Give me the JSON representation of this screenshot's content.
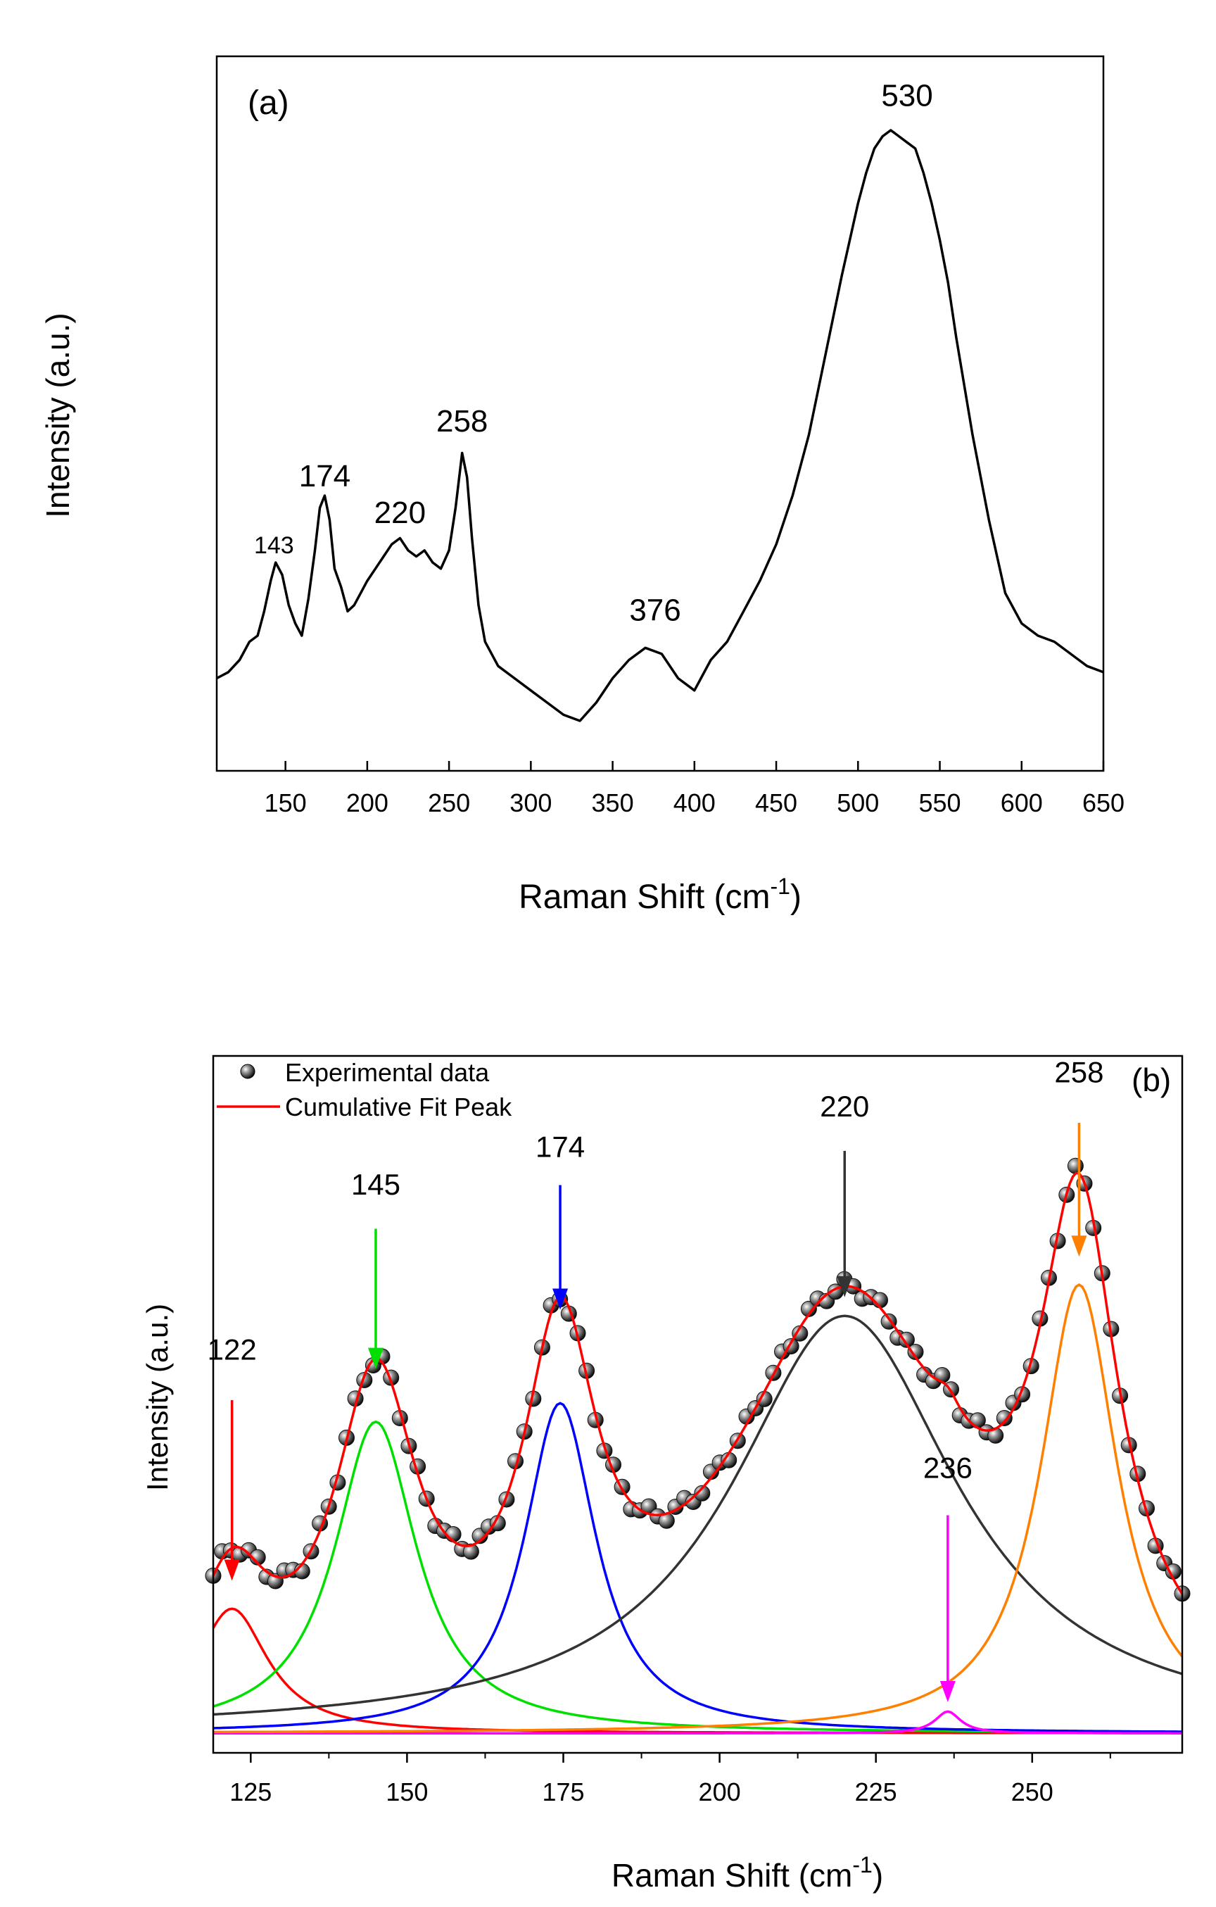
{
  "chart_data": [
    {
      "type": "line",
      "panel_label": "(a)",
      "title": "",
      "xlabel": "Raman Shift (cm",
      "xlabel_sup": "-1",
      "xlabel_end": ")",
      "ylabel": "Intensity (a.u.)",
      "xlim": [
        108,
        650
      ],
      "ylim": [
        0,
        1
      ],
      "xticks": [
        150,
        200,
        250,
        300,
        350,
        400,
        450,
        500,
        550,
        600,
        650
      ],
      "xtick_labels": [
        "150",
        "200",
        "250",
        "300",
        "350",
        "400",
        "450",
        "500",
        "550",
        "600",
        "650"
      ],
      "annotations": [
        {
          "text": "143",
          "x": 143,
          "y": 0.305
        },
        {
          "text": "174",
          "x": 174,
          "y": 0.415
        },
        {
          "text": "220",
          "x": 220,
          "y": 0.355
        },
        {
          "text": "258",
          "x": 258,
          "y": 0.505
        },
        {
          "text": "376",
          "x": 376,
          "y": 0.195
        },
        {
          "text": "530",
          "x": 530,
          "y": 1.04
        }
      ],
      "series": [
        {
          "name": "spectrum",
          "color": "#000000",
          "x": [
            108,
            115,
            122,
            128,
            133,
            137,
            141,
            144,
            148,
            152,
            156,
            160,
            164,
            168,
            171,
            174,
            177,
            180,
            184,
            188,
            192,
            196,
            200,
            205,
            210,
            215,
            220,
            225,
            230,
            235,
            240,
            245,
            250,
            254,
            258,
            261,
            264,
            268,
            272,
            280,
            290,
            300,
            310,
            320,
            330,
            340,
            350,
            360,
            370,
            380,
            390,
            400,
            410,
            420,
            430,
            440,
            450,
            460,
            470,
            480,
            490,
            500,
            505,
            510,
            515,
            520,
            525,
            530,
            535,
            540,
            545,
            550,
            555,
            560,
            570,
            580,
            590,
            600,
            610,
            620,
            630,
            640,
            650
          ],
          "y": [
            0.1,
            0.11,
            0.13,
            0.16,
            0.17,
            0.21,
            0.26,
            0.29,
            0.27,
            0.22,
            0.19,
            0.17,
            0.23,
            0.31,
            0.38,
            0.4,
            0.36,
            0.28,
            0.25,
            0.21,
            0.22,
            0.24,
            0.26,
            0.28,
            0.3,
            0.32,
            0.33,
            0.31,
            0.3,
            0.31,
            0.29,
            0.28,
            0.31,
            0.38,
            0.47,
            0.43,
            0.33,
            0.22,
            0.16,
            0.12,
            0.1,
            0.08,
            0.06,
            0.04,
            0.03,
            0.06,
            0.1,
            0.13,
            0.15,
            0.14,
            0.1,
            0.08,
            0.13,
            0.16,
            0.21,
            0.26,
            0.32,
            0.4,
            0.5,
            0.63,
            0.76,
            0.88,
            0.93,
            0.97,
            0.99,
            1.0,
            0.99,
            0.98,
            0.97,
            0.93,
            0.88,
            0.82,
            0.75,
            0.66,
            0.5,
            0.36,
            0.24,
            0.19,
            0.17,
            0.16,
            0.14,
            0.12,
            0.11
          ]
        }
      ]
    },
    {
      "type": "line",
      "panel_label": "(b)",
      "title": "",
      "xlabel": "Raman Shift (cm",
      "xlabel_sup": "-1",
      "xlabel_end": ")",
      "ylabel": "Intensity (a.u.)",
      "xlim": [
        119,
        274
      ],
      "ylim": [
        0,
        1
      ],
      "xticks": [
        125,
        150,
        175,
        200,
        225,
        250
      ],
      "xtick_labels": [
        "125",
        "150",
        "175",
        "200",
        "225",
        "250"
      ],
      "legend": {
        "position": "top-left",
        "entries": [
          {
            "label": "Experimental data",
            "marker": "sphere",
            "color": "#000000"
          },
          {
            "label": "Cumulative Fit Peak",
            "marker": "line",
            "color": "#ff0000"
          }
        ]
      },
      "baseline": 0.02,
      "peaks": [
        {
          "name": "Peak 122",
          "label": "122",
          "center": 122,
          "height": 0.2,
          "hwhm": 7,
          "color": "#ff0000",
          "arrow": {
            "label_y": 0.62,
            "from": 0.555,
            "to": 0.265
          }
        },
        {
          "name": "Peak 145",
          "label": "145",
          "center": 145,
          "height": 0.5,
          "hwhm": 8,
          "color": "#00e000",
          "arrow": {
            "label_y": 0.885,
            "from": 0.83,
            "to": 0.605
          }
        },
        {
          "name": "Peak 174",
          "label": "174",
          "center": 174.5,
          "height": 0.53,
          "hwhm": 7,
          "color": "#0000ff",
          "arrow": {
            "label_y": 0.945,
            "from": 0.9,
            "to": 0.7
          }
        },
        {
          "name": "Peak 220",
          "label": "220",
          "center": 220,
          "height": 0.67,
          "hwhm": 22,
          "color": "#333333",
          "arrow": {
            "label_y": 1.01,
            "from": 0.955,
            "to": 0.72
          }
        },
        {
          "name": "Peak 236",
          "label": "236",
          "center": 236.5,
          "height": 0.035,
          "hwhm": 2.5,
          "color": "#ff00ff",
          "arrow": {
            "label_y": 0.43,
            "from": 0.37,
            "to": 0.07
          }
        },
        {
          "name": "Peak 258",
          "label": "258",
          "center": 257.5,
          "height": 0.72,
          "hwhm": 7.5,
          "color": "#ff8000",
          "arrow": {
            "label_y": 1.065,
            "from": 1.0,
            "to": 0.785
          }
        }
      ],
      "experimental_x_range": [
        119,
        274
      ],
      "experimental_point_count": 110,
      "cumulative_color": "#ff0000",
      "panel_tag": "(b)"
    }
  ]
}
